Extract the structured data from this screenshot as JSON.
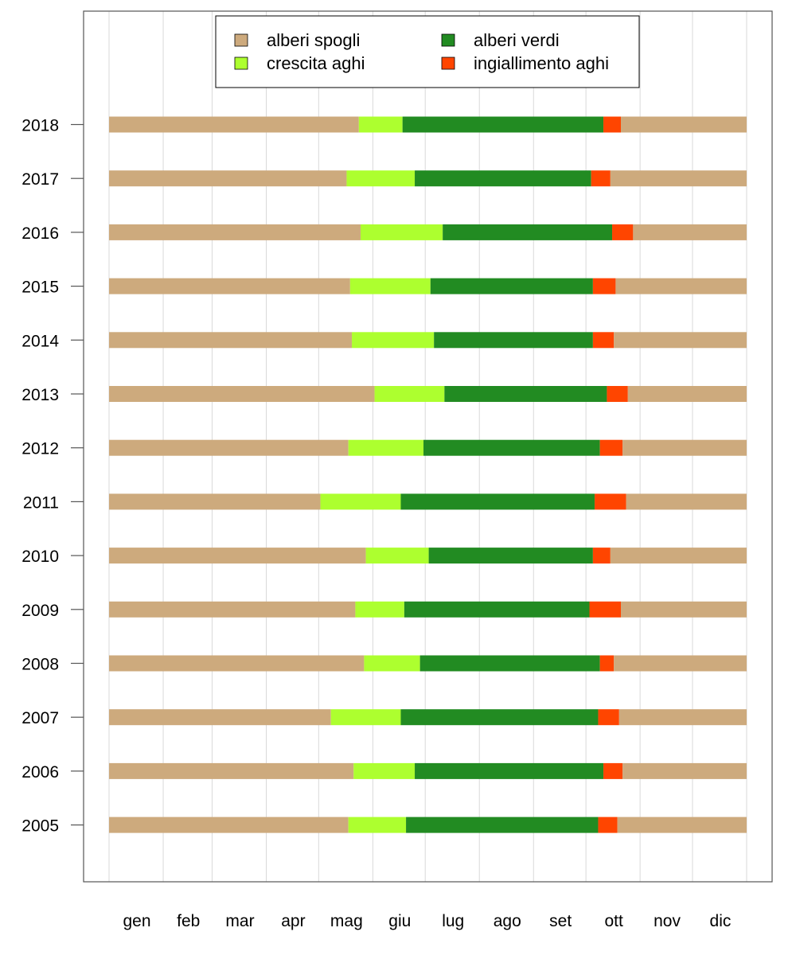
{
  "chart_data": {
    "type": "bar",
    "orientation": "horizontal-stacked",
    "title": "",
    "xlabel": "",
    "ylabel": "",
    "x_unit": "day of year",
    "xlim": [
      0,
      365
    ],
    "month_labels": [
      "gen",
      "feb",
      "mar",
      "apr",
      "mag",
      "giu",
      "lug",
      "ago",
      "set",
      "ott",
      "nov",
      "dic"
    ],
    "month_starts": [
      0,
      31,
      59,
      90,
      120,
      151,
      181,
      212,
      243,
      273,
      304,
      334
    ],
    "grid": true,
    "legend_position": "top",
    "phases": [
      {
        "key": "spogli",
        "name": "alberi spogli",
        "color": "#CDAA7D"
      },
      {
        "key": "crescita",
        "name": "crescita aghi",
        "color": "#ADFF2F"
      },
      {
        "key": "verdi",
        "name": "alberi verdi",
        "color": "#228B22"
      },
      {
        "key": "ingiallimento",
        "name": "ingiallimento aghi",
        "color": "#FF4500"
      }
    ],
    "years": [
      {
        "year": "2018",
        "start_growth": 143,
        "start_green": 168,
        "start_yellow": 283,
        "start_bare": 293
      },
      {
        "year": "2017",
        "start_growth": 136,
        "start_green": 175,
        "start_yellow": 276,
        "start_bare": 287
      },
      {
        "year": "2016",
        "start_growth": 144,
        "start_green": 191,
        "start_yellow": 288,
        "start_bare": 300
      },
      {
        "year": "2015",
        "start_growth": 138,
        "start_green": 184,
        "start_yellow": 277,
        "start_bare": 290
      },
      {
        "year": "2014",
        "start_growth": 139,
        "start_green": 186,
        "start_yellow": 277,
        "start_bare": 289
      },
      {
        "year": "2013",
        "start_growth": 152,
        "start_green": 192,
        "start_yellow": 285,
        "start_bare": 297
      },
      {
        "year": "2012",
        "start_growth": 137,
        "start_green": 180,
        "start_yellow": 281,
        "start_bare": 294
      },
      {
        "year": "2011",
        "start_growth": 121,
        "start_green": 167,
        "start_yellow": 278,
        "start_bare": 296
      },
      {
        "year": "2010",
        "start_growth": 147,
        "start_green": 183,
        "start_yellow": 277,
        "start_bare": 287
      },
      {
        "year": "2009",
        "start_growth": 141,
        "start_green": 169,
        "start_yellow": 275,
        "start_bare": 293
      },
      {
        "year": "2008",
        "start_growth": 146,
        "start_green": 178,
        "start_yellow": 281,
        "start_bare": 289
      },
      {
        "year": "2007",
        "start_growth": 127,
        "start_green": 167,
        "start_yellow": 280,
        "start_bare": 292
      },
      {
        "year": "2006",
        "start_growth": 140,
        "start_green": 175,
        "start_yellow": 283,
        "start_bare": 294
      },
      {
        "year": "2005",
        "start_growth": 137,
        "start_green": 170,
        "start_yellow": 280,
        "start_bare": 291
      }
    ]
  }
}
